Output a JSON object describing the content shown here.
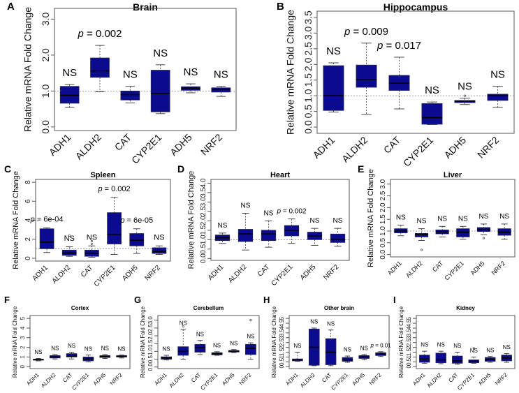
{
  "colors": {
    "box": "#0b0b8f",
    "box_stroke": "#2a2a4a",
    "axis": "#555555",
    "refline": "#888888"
  },
  "chart_data": [
    {
      "panel_label": "A",
      "type": "boxplot",
      "title": "Brain",
      "ylabel": "Relative mRNA Fold Change",
      "ylim": [
        -0.1,
        3.3
      ],
      "yticks": [
        0,
        1,
        2,
        3
      ],
      "ytick_labels": [
        "0.0",
        "1.0",
        "2.0",
        "3.0"
      ],
      "refline": 1.0,
      "categories": [
        "ADH1",
        "ALDH2",
        "CAT",
        "CYP2E1",
        "ADH5",
        "NRF2"
      ],
      "boxes": [
        {
          "min": 0.55,
          "q1": 0.66,
          "median": 0.88,
          "q3": 1.13,
          "max": 1.18,
          "outliers": []
        },
        {
          "min": 0.98,
          "q1": 1.38,
          "median": 1.56,
          "q3": 1.92,
          "max": 2.27,
          "outliers": []
        },
        {
          "min": 0.67,
          "q1": 0.75,
          "median": 0.9,
          "q3": 1.0,
          "max": 1.13,
          "outliers": []
        },
        {
          "min": 0.37,
          "q1": 0.42,
          "median": 0.93,
          "q3": 1.58,
          "max": 1.73,
          "outliers": []
        },
        {
          "min": 0.95,
          "q1": 1.02,
          "median": 1.08,
          "q3": 1.12,
          "max": 1.2,
          "outliers": []
        },
        {
          "min": 0.85,
          "q1": 0.97,
          "median": 1.05,
          "q3": 1.09,
          "max": 1.13,
          "outliers": []
        }
      ],
      "annotations": [
        "NS",
        "p = 0.002",
        "NS",
        "NS",
        "NS",
        "NS"
      ]
    },
    {
      "panel_label": "B",
      "type": "boxplot",
      "title": "Hippocampus",
      "ylabel": "Relative mRNA Fold Change",
      "ylim": [
        -0.2,
        3.7
      ],
      "yticks": [
        0,
        0.5,
        1,
        1.5,
        2,
        2.5,
        3,
        3.5
      ],
      "ytick_labels": [
        "0.0",
        "0.5",
        "1.0",
        "1.5",
        "2.0",
        "2.5",
        "3.0",
        "3.5"
      ],
      "refline": 1.0,
      "categories": [
        "ADH1",
        "ALDH2",
        "CAT",
        "CYP2E1",
        "ADH5",
        "NRF2"
      ],
      "boxes": [
        {
          "min": 0.48,
          "q1": 0.53,
          "median": 1.0,
          "q3": 1.96,
          "max": 2.05,
          "outliers": []
        },
        {
          "min": 0.4,
          "q1": 1.27,
          "median": 1.52,
          "q3": 1.98,
          "max": 2.68,
          "outliers": []
        },
        {
          "min": 0.58,
          "q1": 1.17,
          "median": 1.4,
          "q3": 1.65,
          "max": 2.23,
          "outliers": []
        },
        {
          "min": 0.08,
          "q1": 0.09,
          "median": 0.3,
          "q3": 0.75,
          "max": 0.8,
          "outliers": []
        },
        {
          "min": 0.72,
          "q1": 0.78,
          "median": 0.82,
          "q3": 0.85,
          "max": 0.92,
          "outliers": [
            1.0
          ]
        },
        {
          "min": 0.63,
          "q1": 0.85,
          "median": 1.0,
          "q3": 1.05,
          "max": 1.3,
          "outliers": []
        }
      ],
      "annotations": [
        "NS",
        "p = 0.009",
        "p = 0.017",
        "NS",
        "NS",
        "NS"
      ]
    },
    {
      "panel_label": "C",
      "type": "boxplot",
      "title": "Spleen",
      "ylabel": "Relative mRNA Fold Change",
      "ylim": [
        -0.3,
        8.3
      ],
      "yticks": [
        0,
        2,
        4,
        6,
        8
      ],
      "ytick_labels": [
        "0",
        "2",
        "4",
        "6",
        "8"
      ],
      "refline": 1,
      "categories": [
        "ADH1",
        "ALDH2",
        "CAT",
        "CYP2E1",
        "ADH5",
        "NRF2"
      ],
      "boxes": [
        {
          "min": 0.6,
          "q1": 1.0,
          "median": 1.7,
          "q3": 3.1,
          "max": 3.2,
          "outliers": []
        },
        {
          "min": 0.2,
          "q1": 0.3,
          "median": 0.55,
          "q3": 0.85,
          "max": 1.2,
          "outliers": [
            2.4
          ]
        },
        {
          "min": 0.1,
          "q1": 0.2,
          "median": 0.5,
          "q3": 0.85,
          "max": 1.3,
          "outliers": [
            1.5,
            1.8
          ]
        },
        {
          "min": 0.4,
          "q1": 1.5,
          "median": 2.5,
          "q3": 4.8,
          "max": 6.4,
          "outliers": []
        },
        {
          "min": 0.5,
          "q1": 1.3,
          "median": 1.9,
          "q3": 2.6,
          "max": 3.1,
          "outliers": []
        },
        {
          "min": 0.4,
          "q1": 0.5,
          "median": 0.7,
          "q3": 1.1,
          "max": 1.3,
          "outliers": []
        }
      ],
      "annotations": [
        "p = 6e-04",
        "NS",
        "NS",
        "p = 0.002",
        "p = 6e-05",
        "NS"
      ]
    },
    {
      "panel_label": "D",
      "type": "boxplot",
      "title": "Heart",
      "ylabel": "Relative mRNA Fold Change",
      "ylim": [
        -0.1,
        4.2
      ],
      "yticks": [
        0,
        0.5,
        1,
        1.5,
        2,
        2.5,
        3,
        3.5,
        4
      ],
      "ytick_labels": [
        "0.0",
        "0.5",
        "1.0",
        "1.5",
        "2.0",
        "2.5",
        "3.0",
        "3.5",
        "4.0"
      ],
      "refline": 1.0,
      "categories": [
        "ADH1",
        "ALDH2",
        "CAT",
        "CYP2E1",
        "ADH5",
        "NRF2"
      ],
      "boxes": [
        {
          "min": 0.8,
          "q1": 0.95,
          "median": 1.1,
          "q3": 1.25,
          "max": 1.35,
          "outliers": []
        },
        {
          "min": 0.45,
          "q1": 0.9,
          "median": 1.3,
          "q3": 1.55,
          "max": 2.4,
          "outliers": []
        },
        {
          "min": 0.6,
          "q1": 0.95,
          "median": 1.3,
          "q3": 1.5,
          "max": 2.0,
          "outliers": []
        },
        {
          "min": 0.8,
          "q1": 1.2,
          "median": 1.5,
          "q3": 1.75,
          "max": 2.1,
          "outliers": []
        },
        {
          "min": 0.7,
          "q1": 1.0,
          "median": 1.2,
          "q3": 1.4,
          "max": 1.6,
          "outliers": []
        },
        {
          "min": 0.65,
          "q1": 0.85,
          "median": 1.0,
          "q3": 1.3,
          "max": 1.6,
          "outliers": []
        }
      ],
      "annotations": [
        "NS",
        "NS",
        "NS",
        "p = 0.002",
        "NS",
        "NS"
      ]
    },
    {
      "panel_label": "E",
      "type": "boxplot",
      "title": "Liver",
      "ylabel": "Relative mRNA Fold Change",
      "ylim": [
        -0.1,
        3.2
      ],
      "yticks": [
        0,
        0.5,
        1,
        1.5,
        2,
        2.5,
        3
      ],
      "ytick_labels": [
        "0.0",
        "0.5",
        "1.0",
        "1.5",
        "2.0",
        "2.5",
        "3.0"
      ],
      "refline": 1.0,
      "categories": [
        "ADH1",
        "ALDH2",
        "CAT",
        "CYP2E1",
        "ADH5",
        "NRF2"
      ],
      "boxes": [
        {
          "min": 0.8,
          "q1": 0.92,
          "median": 1.0,
          "q3": 1.1,
          "max": 1.25,
          "outliers": []
        },
        {
          "min": 0.6,
          "q1": 0.75,
          "median": 0.85,
          "q3": 0.9,
          "max": 1.1,
          "outliers": [
            0.2
          ]
        },
        {
          "min": 0.75,
          "q1": 0.88,
          "median": 0.97,
          "q3": 1.05,
          "max": 1.2,
          "outliers": []
        },
        {
          "min": 0.65,
          "q1": 0.75,
          "median": 0.95,
          "q3": 1.1,
          "max": 1.2,
          "outliers": []
        },
        {
          "min": 0.85,
          "q1": 0.98,
          "median": 1.05,
          "q3": 1.15,
          "max": 1.3,
          "outliers": [
            0.7
          ]
        },
        {
          "min": 0.65,
          "q1": 0.82,
          "median": 0.95,
          "q3": 1.1,
          "max": 1.3,
          "outliers": []
        }
      ],
      "annotations": [
        "NS",
        "NS",
        "NS",
        "NS",
        "NS",
        "NS"
      ]
    },
    {
      "panel_label": "F",
      "type": "boxplot",
      "title": "Cortex",
      "ylabel": "Relative mRNA Fold Change",
      "ylim": [
        -0.2,
        5.3
      ],
      "yticks": [
        0,
        1,
        2,
        3,
        4,
        5
      ],
      "ytick_labels": [
        "0",
        "1",
        "2",
        "3",
        "4",
        "5"
      ],
      "refline": null,
      "categories": [
        "ADH1",
        "ALDH2",
        "CAT",
        "CYP2E1",
        "ADH5",
        "NRF2"
      ],
      "boxes": [
        {
          "min": 0.6,
          "q1": 0.68,
          "median": 0.72,
          "q3": 0.78,
          "max": 0.85,
          "outliers": []
        },
        {
          "min": 0.8,
          "q1": 0.9,
          "median": 1.0,
          "q3": 1.15,
          "max": 1.25,
          "outliers": []
        },
        {
          "min": 0.8,
          "q1": 1.0,
          "median": 1.1,
          "q3": 1.35,
          "max": 1.5,
          "outliers": []
        },
        {
          "min": 0.5,
          "q1": 0.6,
          "median": 0.8,
          "q3": 1.0,
          "max": 1.2,
          "outliers": []
        },
        {
          "min": 0.85,
          "q1": 0.95,
          "median": 1.05,
          "q3": 1.15,
          "max": 1.25,
          "outliers": []
        },
        {
          "min": 0.9,
          "q1": 1.0,
          "median": 1.05,
          "q3": 1.15,
          "max": 1.2,
          "outliers": []
        }
      ],
      "annotations": [
        "NS",
        "NS",
        "NS",
        "NS",
        "NS",
        "NS"
      ]
    },
    {
      "panel_label": "G",
      "type": "boxplot",
      "title": "Cerebellum",
      "ylabel": "Relative mRNA Fold Change",
      "ylim": [
        -0.1,
        3.3
      ],
      "yticks": [
        0,
        0.5,
        1,
        1.5,
        2,
        2.5,
        3
      ],
      "ytick_labels": [
        "0.0",
        "0.5",
        "1.0",
        "1.5",
        "2.0",
        "2.5",
        "3.0"
      ],
      "refline": null,
      "categories": [
        "ADH1",
        "ALDH2",
        "CAT",
        "CYP2E1",
        "ADH5",
        "NRF2"
      ],
      "boxes": [
        {
          "min": 0.45,
          "q1": 0.5,
          "median": 0.58,
          "q3": 0.65,
          "max": 0.75,
          "outliers": []
        },
        {
          "min": 0.5,
          "q1": 0.75,
          "median": 1.0,
          "q3": 1.3,
          "max": 2.4,
          "outliers": [
            2.6
          ]
        },
        {
          "min": 0.8,
          "q1": 0.95,
          "median": 1.25,
          "q3": 1.45,
          "max": 1.7,
          "outliers": []
        },
        {
          "min": 0.75,
          "q1": 0.78,
          "median": 0.85,
          "q3": 0.92,
          "max": 0.98,
          "outliers": []
        },
        {
          "min": 0.92,
          "q1": 0.96,
          "median": 1.02,
          "q3": 1.06,
          "max": 1.12,
          "outliers": []
        },
        {
          "min": 0.5,
          "q1": 0.8,
          "median": 1.2,
          "q3": 1.45,
          "max": 1.55,
          "outliers": [
            3.0
          ]
        }
      ],
      "annotations": [
        "NS",
        "NS",
        "NS",
        "NS",
        "NS",
        "NS"
      ]
    },
    {
      "panel_label": "H",
      "type": "boxplot",
      "title": "Other brain",
      "ylabel": "Relative mRNA Fold Change",
      "ylim": [
        -0.2,
        5.3
      ],
      "yticks": [
        0,
        0.5,
        1,
        1.5,
        2,
        2.5,
        3,
        3.5,
        4,
        4.5,
        5
      ],
      "ytick_labels": [
        "0",
        "0.5",
        "1",
        "1.5",
        "2",
        "2.5",
        "3",
        "3.5",
        "4",
        "4.5",
        "5"
      ],
      "refline": null,
      "categories": [
        "ADH1",
        "ALDH2",
        "CAT",
        "CYP2E1",
        "ADH5",
        "NRF2"
      ],
      "boxes": [
        {
          "min": 0.55,
          "q1": 0.6,
          "median": 0.7,
          "q3": 0.8,
          "max": 1.5,
          "outliers": []
        },
        {
          "min": 0.1,
          "q1": 0.15,
          "median": 2.0,
          "q3": 3.9,
          "max": 4.0,
          "outliers": []
        },
        {
          "min": 0.1,
          "q1": 0.2,
          "median": 1.5,
          "q3": 2.9,
          "max": 3.8,
          "outliers": []
        },
        {
          "min": 0.45,
          "q1": 0.55,
          "median": 0.7,
          "q3": 0.95,
          "max": 1.1,
          "outliers": []
        },
        {
          "min": 0.7,
          "q1": 0.85,
          "median": 1.0,
          "q3": 1.15,
          "max": 1.25,
          "outliers": []
        },
        {
          "min": 1.05,
          "q1": 1.15,
          "median": 1.3,
          "q3": 1.45,
          "max": 1.55,
          "outliers": []
        }
      ],
      "annotations": [
        "NS",
        "NS",
        "NS",
        "NS",
        "NS",
        "p = 0.01"
      ]
    },
    {
      "panel_label": "I",
      "type": "boxplot",
      "title": "Kidney",
      "ylabel": "Relative mRNA Fold Change",
      "ylim": [
        -0.2,
        5.3
      ],
      "yticks": [
        0,
        0.5,
        1,
        1.5,
        2,
        2.5,
        3,
        3.5,
        4,
        4.5,
        5
      ],
      "ytick_labels": [
        "0",
        "0.5",
        "1",
        "1.5",
        "2",
        "2.5",
        "3",
        "3.5",
        "4",
        "4.5",
        "5"
      ],
      "refline": null,
      "categories": [
        "ADH1",
        "ALDH2",
        "CAT",
        "CYP2E1",
        "ADH5",
        "NRF2"
      ],
      "boxes": [
        {
          "min": 0.35,
          "q1": 0.45,
          "median": 0.8,
          "q3": 1.2,
          "max": 1.6,
          "outliers": []
        },
        {
          "min": 0.3,
          "q1": 0.4,
          "median": 0.7,
          "q3": 1.4,
          "max": 1.6,
          "outliers": []
        },
        {
          "min": 0.25,
          "q1": 0.35,
          "median": 0.6,
          "q3": 1.1,
          "max": 1.5,
          "outliers": []
        },
        {
          "min": 0.35,
          "q1": 0.4,
          "median": 0.55,
          "q3": 0.7,
          "max": 1.0,
          "outliers": [
            1.9
          ]
        },
        {
          "min": 0.45,
          "q1": 0.55,
          "median": 0.75,
          "q3": 0.95,
          "max": 1.05,
          "outliers": []
        },
        {
          "min": 0.45,
          "q1": 0.6,
          "median": 0.9,
          "q3": 1.2,
          "max": 1.35,
          "outliers": []
        }
      ],
      "annotations": [
        "NS",
        "NS",
        "NS",
        "NS",
        "NS",
        "NS"
      ]
    }
  ]
}
